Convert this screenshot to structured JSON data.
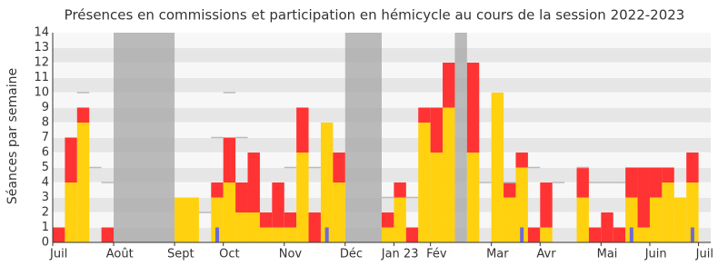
{
  "chart_data": {
    "type": "bar",
    "title": "Présences en commissions et participation en hémicycle au cours de la session 2022-2023",
    "y_label": "Séances par semaine",
    "categories": [
      "Juil",
      null,
      null,
      null,
      null,
      "Août",
      null,
      null,
      null,
      null,
      "Sept",
      null,
      null,
      null,
      "Oct",
      null,
      null,
      null,
      null,
      "Nov",
      null,
      null,
      null,
      null,
      "Déc",
      null,
      null,
      null,
      "Jan 23",
      null,
      null,
      "Fév",
      null,
      null,
      null,
      null,
      "Mar",
      null,
      null,
      null,
      "Avr",
      null,
      null,
      null,
      null,
      "Mai",
      null,
      null,
      null,
      "Juin",
      null,
      null,
      null,
      "Juil"
    ],
    "series": [
      {
        "color": "#FFD10F",
        "values": [
          0,
          4,
          8,
          0,
          0,
          0,
          0,
          0,
          0,
          0,
          3,
          3,
          0,
          3,
          4,
          2,
          2,
          1,
          1,
          1,
          6,
          0,
          8,
          4,
          0,
          0,
          0,
          1,
          3,
          0,
          8,
          6,
          9,
          0,
          6,
          0,
          10,
          3,
          5,
          0,
          1,
          0,
          0,
          3,
          0,
          0,
          0,
          3,
          1,
          3,
          4,
          3,
          4,
          0
        ]
      },
      {
        "color": "#FF3333",
        "values": [
          1,
          3,
          1,
          0,
          1,
          0,
          0,
          0,
          0,
          0,
          0,
          0,
          0,
          1,
          3,
          2,
          4,
          1,
          3,
          1,
          3,
          2,
          0,
          2,
          0,
          0,
          0,
          1,
          1,
          1,
          1,
          3,
          3,
          0,
          6,
          0,
          0,
          1,
          1,
          1,
          3,
          0,
          0,
          2,
          1,
          2,
          1,
          2,
          4,
          2,
          1,
          0,
          2,
          0
        ]
      }
    ],
    "median": {
      "color": "#bbbbbb",
      "values": [
        null,
        null,
        10,
        5,
        4,
        null,
        null,
        null,
        null,
        null,
        null,
        null,
        2,
        7,
        10,
        7,
        null,
        null,
        null,
        5,
        null,
        5,
        null,
        null,
        null,
        null,
        null,
        3,
        null,
        3,
        null,
        null,
        null,
        null,
        null,
        4,
        null,
        4,
        null,
        5,
        null,
        4,
        null,
        5,
        4,
        4,
        4,
        null,
        null,
        null,
        null,
        null,
        null,
        null
      ]
    },
    "marker": {
      "color": "#6b6bd6",
      "values": [
        0,
        0,
        0,
        0,
        0,
        0,
        0,
        0,
        0,
        0,
        0,
        0,
        0,
        1,
        0,
        0,
        0,
        0,
        0,
        0,
        0,
        0,
        1,
        0,
        0,
        0,
        0,
        0,
        0,
        0,
        0,
        0,
        0,
        0,
        0,
        0,
        0,
        0,
        1,
        0,
        0,
        0,
        0,
        0,
        0,
        0,
        0,
        1,
        0,
        0,
        0,
        0,
        1,
        0
      ]
    },
    "shaded": [
      [
        5,
        10
      ],
      [
        24,
        27
      ],
      [
        33,
        34
      ]
    ],
    "ylim": [
      0,
      14
    ],
    "yticks": [
      0,
      1,
      2,
      3,
      4,
      5,
      6,
      7,
      8,
      9,
      10,
      11,
      12,
      13,
      14
    ],
    "grid": true
  }
}
